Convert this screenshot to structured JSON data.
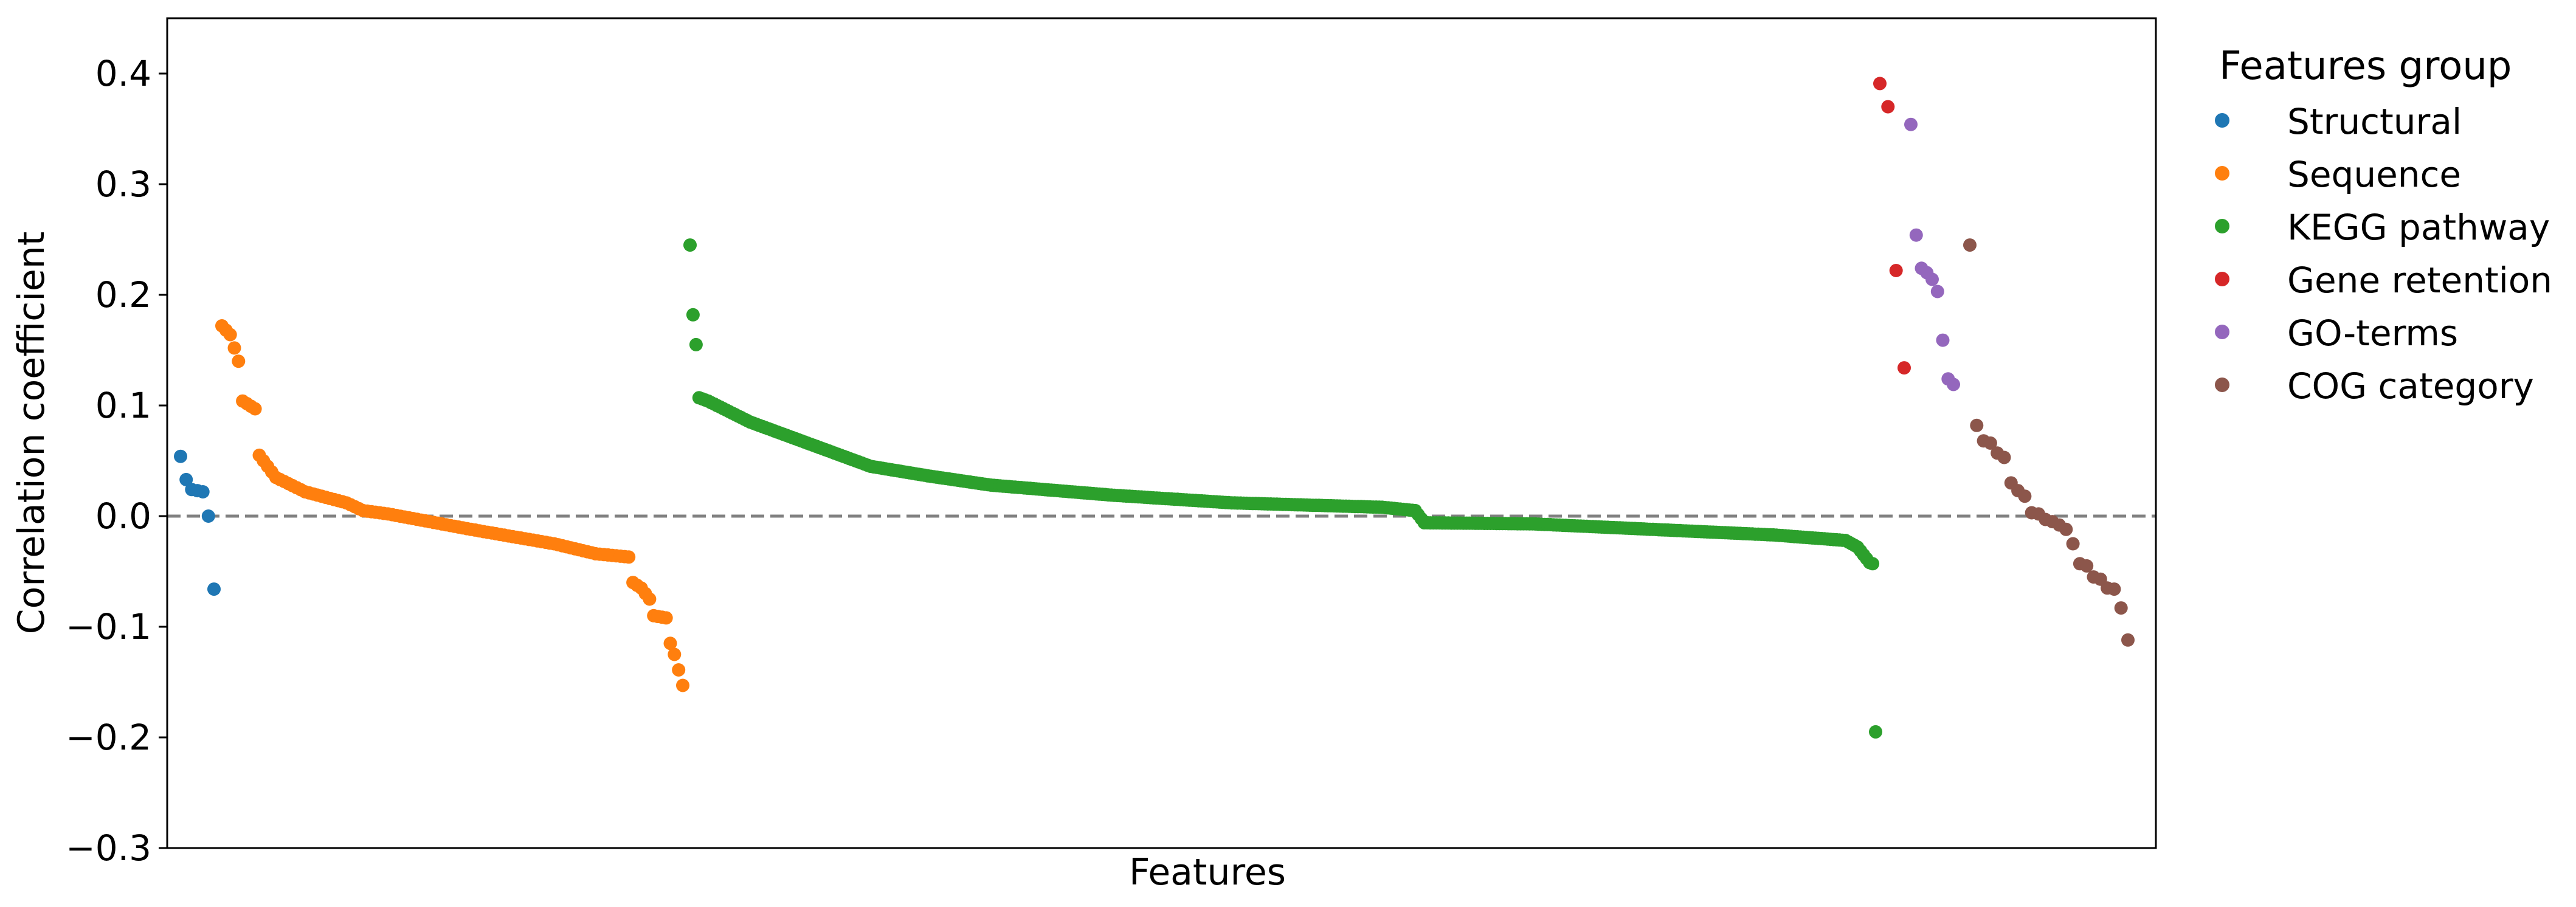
{
  "chart_data": {
    "type": "scatter",
    "title": "",
    "xlabel": "Features",
    "ylabel": "Correlation coefficient",
    "ylim": [
      -0.3,
      0.45
    ],
    "yticks": [
      -0.3,
      -0.2,
      -0.1,
      0.0,
      0.1,
      0.2,
      0.3,
      0.4
    ],
    "ytick_labels": [
      "−0.3",
      "−0.2",
      "−0.1",
      "0.0",
      "0.1",
      "0.2",
      "0.3",
      "0.4"
    ],
    "x_ticks_shown": false,
    "grid": false,
    "reference_line": {
      "y": 0.0,
      "style": "dashed",
      "color": "#808080"
    },
    "legend": {
      "title": "Features group",
      "placement": "outside-right-top"
    },
    "series": [
      {
        "name": "Structural",
        "color": "#1f77b4",
        "values": [
          0.054,
          0.033,
          0.024,
          0.023,
          0.022,
          0.0,
          -0.066
        ]
      },
      {
        "name": "Sequence",
        "color": "#ff7f0e",
        "anchors": [
          [
            0,
            0.172
          ],
          [
            2,
            0.164
          ],
          [
            4,
            0.14
          ],
          [
            5,
            0.104
          ],
          [
            8,
            0.097
          ],
          [
            9,
            0.055
          ],
          [
            13,
            0.035
          ],
          [
            20,
            0.022
          ],
          [
            30,
            0.012
          ],
          [
            34,
            0.005
          ],
          [
            40,
            0.002
          ],
          [
            60,
            -0.012
          ],
          [
            80,
            -0.025
          ],
          [
            90,
            -0.034
          ],
          [
            98,
            -0.037
          ],
          [
            99,
            -0.06
          ],
          [
            101,
            -0.065
          ],
          [
            103,
            -0.075
          ],
          [
            104,
            -0.09
          ],
          [
            107,
            -0.092
          ],
          [
            108,
            -0.115
          ],
          [
            109,
            -0.125
          ],
          [
            111,
            -0.153
          ]
        ]
      },
      {
        "name": "KEGG pathway",
        "color": "#2ca02c",
        "anchors": [
          [
            0,
            0.245
          ],
          [
            1,
            0.182
          ],
          [
            2,
            0.155
          ],
          [
            3,
            0.107
          ],
          [
            6,
            0.104
          ],
          [
            20,
            0.085
          ],
          [
            40,
            0.065
          ],
          [
            60,
            0.045
          ],
          [
            80,
            0.036
          ],
          [
            100,
            0.028
          ],
          [
            140,
            0.019
          ],
          [
            180,
            0.012
          ],
          [
            230,
            0.008
          ],
          [
            241,
            0.005
          ],
          [
            244,
            -0.006
          ],
          [
            280,
            -0.007
          ],
          [
            320,
            -0.012
          ],
          [
            360,
            -0.017
          ],
          [
            384,
            -0.022
          ],
          [
            388,
            -0.028
          ],
          [
            390,
            -0.035
          ],
          [
            392,
            -0.042
          ],
          [
            393,
            -0.043
          ],
          [
            394,
            -0.195
          ]
        ]
      },
      {
        "name": "Gene retention",
        "color": "#d62728",
        "values": [
          0.391,
          0.37,
          0.222,
          0.134
        ]
      },
      {
        "name": "GO-terms",
        "color": "#9467bd",
        "values": [
          0.354,
          0.254,
          0.224,
          0.22,
          0.214,
          0.203,
          0.159,
          0.124,
          0.119
        ]
      },
      {
        "name": "COG category",
        "color": "#8c564b",
        "values": [
          0.245,
          0.082,
          0.068,
          0.066,
          0.057,
          0.053,
          0.03,
          0.023,
          0.018,
          0.003,
          0.002,
          -0.003,
          -0.005,
          -0.008,
          -0.012,
          -0.025,
          -0.043,
          -0.045,
          -0.055,
          -0.057,
          -0.065,
          -0.066,
          -0.083,
          -0.112
        ]
      }
    ]
  }
}
